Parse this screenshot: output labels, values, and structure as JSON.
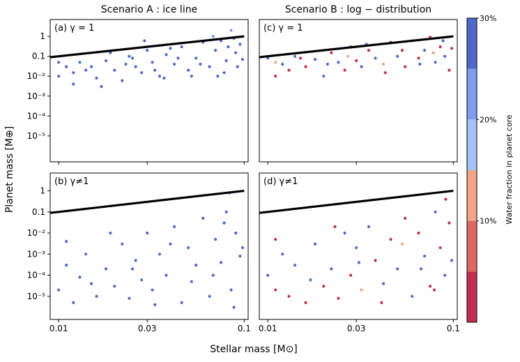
{
  "figure": {
    "xlabel": "Stellar mass [M⊙]",
    "ylabel": "Planet mass [M⊕]",
    "column_titles": [
      "Scenario A :  ice line",
      "Scenario B :  log − distribution"
    ],
    "colorbar_label": "Water fraction in planet core",
    "colorbar_ticks": [
      {
        "value": 30,
        "label": "30%"
      },
      {
        "value": 20,
        "label": "20%"
      },
      {
        "value": 10,
        "label": "10%"
      }
    ],
    "colorbar_bins": [
      {
        "from": 0,
        "to": 5,
        "color": "#c0304e"
      },
      {
        "from": 5,
        "to": 10,
        "color": "#dd6a62"
      },
      {
        "from": 10,
        "to": 15,
        "color": "#f2a487"
      },
      {
        "from": 15,
        "to": 20,
        "color": "#a3c2f7"
      },
      {
        "from": 20,
        "to": 25,
        "color": "#7f9cee"
      },
      {
        "from": 25,
        "to": 30,
        "color": "#5068c9"
      }
    ]
  },
  "chart_data": [
    {
      "type": "scatter",
      "panel_label": "(a) γ = 1",
      "x_scale": "log",
      "y_scale": "log",
      "xlim": [
        0.009,
        0.105
      ],
      "ylim": [
        5e-07,
        7
      ],
      "xticks": [
        {
          "v": 0.01,
          "l": "0.01"
        },
        {
          "v": 0.03,
          "l": "0.03"
        },
        {
          "v": 0.1,
          "l": "0.1"
        }
      ],
      "yticks": [
        {
          "v": 1,
          "l": "1"
        },
        {
          "v": 0.1,
          "l": "0.1"
        },
        {
          "v": 0.01,
          "l": "10⁻²"
        },
        {
          "v": 0.001,
          "l": "10⁻³"
        },
        {
          "v": 0.0001,
          "l": "10⁻⁴"
        },
        {
          "v": 1e-05,
          "l": "10⁻⁵"
        }
      ],
      "reference_line": {
        "x": [
          0.009,
          0.1
        ],
        "y": [
          0.09,
          1.0
        ]
      },
      "points": [
        [
          0.01,
          0.01,
          25
        ],
        [
          0.011,
          0.03,
          25
        ],
        [
          0.012,
          0.004,
          25
        ],
        [
          0.013,
          0.05,
          25
        ],
        [
          0.014,
          0.02,
          25
        ],
        [
          0.016,
          0.008,
          25
        ],
        [
          0.018,
          0.06,
          25
        ],
        [
          0.02,
          0.02,
          25
        ],
        [
          0.022,
          0.006,
          25
        ],
        [
          0.024,
          0.1,
          25
        ],
        [
          0.026,
          0.03,
          25
        ],
        [
          0.028,
          0.015,
          25
        ],
        [
          0.03,
          0.2,
          25
        ],
        [
          0.032,
          0.05,
          25
        ],
        [
          0.035,
          0.01,
          25
        ],
        [
          0.038,
          0.12,
          25
        ],
        [
          0.042,
          0.04,
          25
        ],
        [
          0.046,
          0.3,
          25
        ],
        [
          0.05,
          0.02,
          25
        ],
        [
          0.055,
          0.08,
          25
        ],
        [
          0.06,
          0.5,
          25
        ],
        [
          0.065,
          0.03,
          25
        ],
        [
          0.07,
          0.2,
          25
        ],
        [
          0.075,
          0.6,
          25
        ],
        [
          0.08,
          0.06,
          25
        ],
        [
          0.085,
          2.0,
          20
        ],
        [
          0.09,
          0.15,
          25
        ],
        [
          0.095,
          0.4,
          25
        ],
        [
          0.01,
          0.05,
          25
        ],
        [
          0.012,
          0.015,
          25
        ],
        [
          0.015,
          0.03,
          25
        ],
        [
          0.019,
          0.15,
          25
        ],
        [
          0.025,
          0.08,
          25
        ],
        [
          0.033,
          0.02,
          25
        ],
        [
          0.04,
          0.25,
          25
        ],
        [
          0.052,
          0.01,
          25
        ],
        [
          0.068,
          1.0,
          20
        ],
        [
          0.078,
          0.015,
          25
        ],
        [
          0.088,
          0.8,
          25
        ],
        [
          0.098,
          0.07,
          25
        ],
        [
          0.017,
          0.003,
          25
        ],
        [
          0.023,
          0.04,
          25
        ],
        [
          0.029,
          0.6,
          25
        ],
        [
          0.037,
          0.008,
          25
        ],
        [
          0.044,
          0.08,
          25
        ],
        [
          0.058,
          0.04,
          25
        ],
        [
          0.072,
          0.01,
          25
        ],
        [
          0.082,
          0.3,
          25
        ],
        [
          0.092,
          0.03,
          25
        ]
      ]
    },
    {
      "type": "scatter",
      "panel_label": "(c) γ = 1",
      "x_scale": "log",
      "y_scale": "log",
      "xlim": [
        0.009,
        0.105
      ],
      "ylim": [
        5e-07,
        7
      ],
      "xticks": [
        {
          "v": 0.01,
          "l": "0.01"
        },
        {
          "v": 0.03,
          "l": "0.03"
        },
        {
          "v": 0.1,
          "l": "0.1"
        }
      ],
      "yticks": [],
      "reference_line": {
        "x": [
          0.009,
          0.1
        ],
        "y": [
          0.09,
          1.0
        ]
      },
      "points": [
        [
          0.01,
          0.08,
          25
        ],
        [
          0.011,
          0.01,
          2
        ],
        [
          0.012,
          0.04,
          25
        ],
        [
          0.013,
          0.02,
          2
        ],
        [
          0.014,
          0.1,
          25
        ],
        [
          0.016,
          0.03,
          2
        ],
        [
          0.018,
          0.07,
          25
        ],
        [
          0.02,
          0.01,
          25
        ],
        [
          0.022,
          0.15,
          2
        ],
        [
          0.024,
          0.05,
          25
        ],
        [
          0.026,
          0.02,
          2
        ],
        [
          0.028,
          0.3,
          25
        ],
        [
          0.03,
          0.06,
          2
        ],
        [
          0.032,
          0.03,
          25
        ],
        [
          0.035,
          0.2,
          2
        ],
        [
          0.038,
          0.08,
          25
        ],
        [
          0.042,
          0.04,
          12
        ],
        [
          0.046,
          0.5,
          2
        ],
        [
          0.05,
          0.1,
          25
        ],
        [
          0.055,
          0.03,
          2
        ],
        [
          0.06,
          0.6,
          25
        ],
        [
          0.065,
          0.08,
          2
        ],
        [
          0.07,
          0.2,
          25
        ],
        [
          0.075,
          0.9,
          2
        ],
        [
          0.08,
          0.05,
          25
        ],
        [
          0.085,
          0.3,
          2
        ],
        [
          0.09,
          0.1,
          25
        ],
        [
          0.095,
          0.02,
          2
        ],
        [
          0.011,
          0.05,
          12
        ],
        [
          0.015,
          0.08,
          2
        ],
        [
          0.021,
          0.04,
          25
        ],
        [
          0.027,
          0.1,
          12
        ],
        [
          0.034,
          0.4,
          25
        ],
        [
          0.043,
          0.015,
          2
        ],
        [
          0.053,
          0.2,
          2
        ],
        [
          0.066,
          0.04,
          25
        ],
        [
          0.078,
          0.15,
          12
        ],
        [
          0.088,
          0.6,
          25
        ],
        [
          0.098,
          0.25,
          2
        ]
      ]
    },
    {
      "type": "scatter",
      "panel_label": "(b) γ≠1",
      "x_scale": "log",
      "y_scale": "log",
      "xlim": [
        0.009,
        0.105
      ],
      "ylim": [
        8e-07,
        7
      ],
      "xticks": [
        {
          "v": 0.01,
          "l": "0.01"
        },
        {
          "v": 0.03,
          "l": "0.03"
        },
        {
          "v": 0.1,
          "l": "0.1"
        }
      ],
      "yticks": [
        {
          "v": 1,
          "l": "1"
        },
        {
          "v": 0.1,
          "l": "0.1"
        },
        {
          "v": 0.01,
          "l": "10⁻²"
        },
        {
          "v": 0.001,
          "l": "10⁻³"
        },
        {
          "v": 0.0001,
          "l": "10⁻⁴"
        },
        {
          "v": 1e-05,
          "l": "10⁻⁵"
        }
      ],
      "reference_line": {
        "x": [
          0.009,
          0.1
        ],
        "y": [
          0.09,
          1.0
        ]
      },
      "points": [
        [
          0.01,
          2e-05,
          25
        ],
        [
          0.011,
          0.0003,
          25
        ],
        [
          0.012,
          5e-06,
          25
        ],
        [
          0.013,
          8e-05,
          25
        ],
        [
          0.014,
          0.001,
          25
        ],
        [
          0.016,
          1e-05,
          25
        ],
        [
          0.018,
          0.0002,
          25
        ],
        [
          0.02,
          3e-05,
          25
        ],
        [
          0.022,
          0.003,
          25
        ],
        [
          0.024,
          8e-06,
          25
        ],
        [
          0.026,
          0.0005,
          25
        ],
        [
          0.028,
          6e-05,
          25
        ],
        [
          0.03,
          0.01,
          25
        ],
        [
          0.032,
          2e-05,
          25
        ],
        [
          0.035,
          0.001,
          25
        ],
        [
          0.038,
          0.0001,
          25
        ],
        [
          0.042,
          0.02,
          25
        ],
        [
          0.046,
          5e-06,
          25
        ],
        [
          0.05,
          0.002,
          25
        ],
        [
          0.055,
          0.0003,
          25
        ],
        [
          0.06,
          0.05,
          25
        ],
        [
          0.065,
          1e-05,
          25
        ],
        [
          0.07,
          0.005,
          25
        ],
        [
          0.075,
          0.0004,
          25
        ],
        [
          0.08,
          0.1,
          25
        ],
        [
          0.085,
          2e-05,
          25
        ],
        [
          0.09,
          0.01,
          25
        ],
        [
          0.095,
          0.0008,
          25
        ],
        [
          0.011,
          0.004,
          25
        ],
        [
          0.015,
          4e-05,
          25
        ],
        [
          0.019,
          0.01,
          25
        ],
        [
          0.025,
          0.0002,
          25
        ],
        [
          0.033,
          4e-06,
          25
        ],
        [
          0.04,
          0.003,
          25
        ],
        [
          0.052,
          5e-05,
          25
        ],
        [
          0.068,
          0.0001,
          25
        ],
        [
          0.078,
          0.03,
          25
        ],
        [
          0.088,
          3e-06,
          25
        ],
        [
          0.098,
          0.002,
          25
        ],
        [
          0.083,
          0.8,
          25
        ]
      ]
    },
    {
      "type": "scatter",
      "panel_label": "(d) γ≠1",
      "x_scale": "log",
      "y_scale": "log",
      "xlim": [
        0.009,
        0.105
      ],
      "ylim": [
        8e-07,
        7
      ],
      "xticks": [
        {
          "v": 0.01,
          "l": "0.01"
        },
        {
          "v": 0.03,
          "l": "0.03"
        },
        {
          "v": 0.1,
          "l": "0.1"
        }
      ],
      "yticks": [],
      "reference_line": {
        "x": [
          0.009,
          0.1
        ],
        "y": [
          0.09,
          1.0
        ]
      },
      "points": [
        [
          0.01,
          0.0001,
          25
        ],
        [
          0.011,
          2e-05,
          2
        ],
        [
          0.012,
          0.001,
          25
        ],
        [
          0.013,
          1e-05,
          2
        ],
        [
          0.014,
          0.0003,
          25
        ],
        [
          0.016,
          5e-06,
          2
        ],
        [
          0.018,
          0.003,
          25
        ],
        [
          0.02,
          3e-05,
          2
        ],
        [
          0.022,
          0.0002,
          25
        ],
        [
          0.024,
          8e-06,
          2
        ],
        [
          0.026,
          0.01,
          25
        ],
        [
          0.028,
          0.0001,
          2
        ],
        [
          0.03,
          0.002,
          25
        ],
        [
          0.032,
          2e-05,
          12
        ],
        [
          0.035,
          0.02,
          25
        ],
        [
          0.038,
          0.0005,
          2
        ],
        [
          0.042,
          4e-05,
          25
        ],
        [
          0.046,
          0.005,
          2
        ],
        [
          0.05,
          0.0002,
          25
        ],
        [
          0.055,
          0.05,
          2
        ],
        [
          0.06,
          1e-05,
          25
        ],
        [
          0.065,
          0.01,
          2
        ],
        [
          0.07,
          0.0008,
          25
        ],
        [
          0.075,
          3e-05,
          2
        ],
        [
          0.08,
          0.1,
          25
        ],
        [
          0.085,
          0.002,
          2
        ],
        [
          0.09,
          0.0001,
          25
        ],
        [
          0.095,
          0.03,
          2
        ],
        [
          0.011,
          0.005,
          2
        ],
        [
          0.017,
          6e-05,
          25
        ],
        [
          0.023,
          0.02,
          2
        ],
        [
          0.031,
          0.0004,
          25
        ],
        [
          0.041,
          5e-06,
          2
        ],
        [
          0.053,
          0.003,
          12
        ],
        [
          0.067,
          0.0002,
          25
        ],
        [
          0.079,
          2e-05,
          2
        ],
        [
          0.091,
          0.4,
          2
        ],
        [
          0.098,
          0.0005,
          25
        ]
      ]
    }
  ]
}
